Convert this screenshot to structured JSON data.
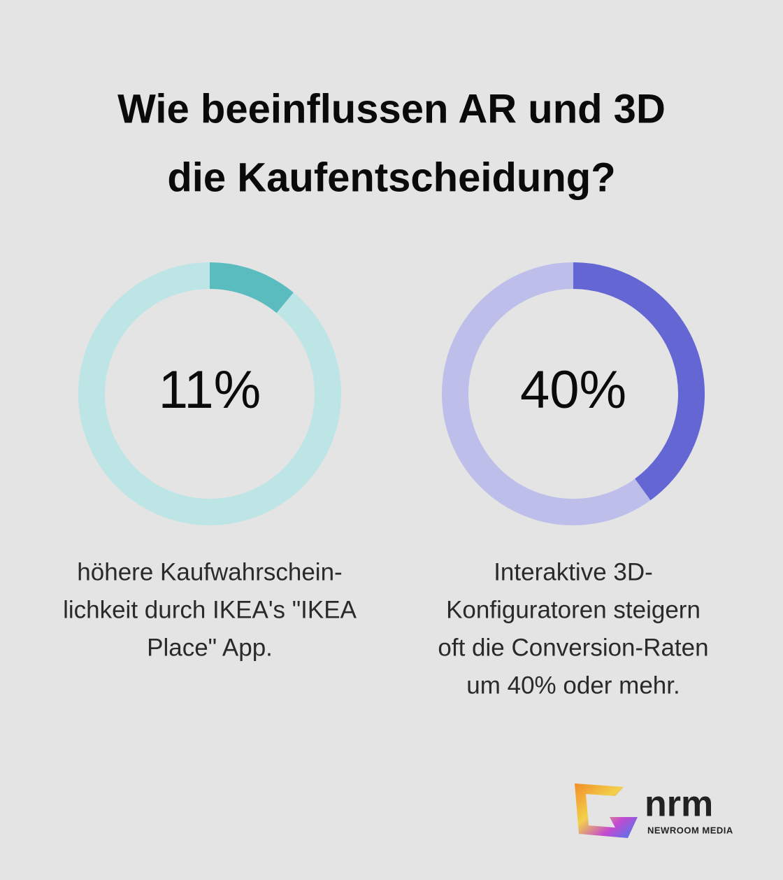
{
  "title": [
    "Wie beeinflussen AR und 3D",
    "die Kaufentscheidung?"
  ],
  "chart_data": [
    {
      "type": "donut",
      "values": [
        11
      ],
      "value_labels": [
        "11%"
      ],
      "color": "#5bbcbf",
      "track_color": "#bde5e6",
      "caption": [
        "höhere Kaufwahrschein-",
        "lichkeit durch IKEA's \"IKEA",
        "Place\" App."
      ]
    },
    {
      "type": "donut",
      "values": [
        40
      ],
      "value_labels": [
        "40%"
      ],
      "color": "#6366d3",
      "track_color": "#bdbeea",
      "caption": [
        "Interaktive 3D-",
        "Konfiguratoren steigern",
        "oft die Conversion-Raten",
        "um 40% oder mehr."
      ]
    }
  ],
  "logo": {
    "name": "nrm",
    "subtitle": "NEWROOM MEDIA"
  }
}
